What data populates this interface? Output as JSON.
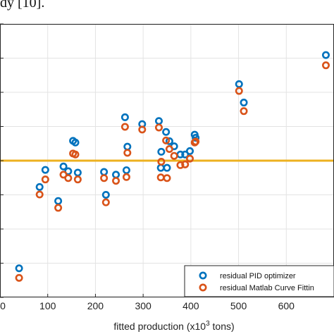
{
  "page": {
    "top_text": "dy [10]."
  },
  "chart_data": {
    "type": "scatter",
    "title": "",
    "xlabel_main": "fitted production (x10",
    "xlabel_sup": "3",
    "xlabel_end": " tons)",
    "ylabel": "",
    "xlim": [
      0,
      700
    ],
    "ylim": [
      -4,
      4
    ],
    "x_ticks": [
      0,
      100,
      200,
      300,
      400,
      500,
      600
    ],
    "x_tick_labels": [
      "0",
      "100",
      "200",
      "300",
      "400",
      "500",
      "600"
    ],
    "y_ticks": [
      -4,
      -3,
      -2,
      -1,
      0,
      1,
      2,
      3,
      4
    ],
    "grid": true,
    "legend_position": "bottom-right",
    "reference_line": {
      "y": 0,
      "color": "#EDB120"
    },
    "series": [
      {
        "name": "residual PID optimizer",
        "color": "#0072BD",
        "x": [
          40,
          83,
          95,
          122,
          133,
          143,
          153,
          158,
          163,
          218,
          222,
          243,
          262,
          265,
          267,
          298,
          333,
          337,
          338,
          348,
          350,
          355,
          365,
          378,
          388,
          398,
          408,
          410,
          501,
          511,
          683
        ],
        "y": [
          -3.15,
          -0.77,
          -0.27,
          -1.18,
          -0.17,
          -0.31,
          0.58,
          0.53,
          -0.35,
          -0.33,
          -1.0,
          -0.41,
          1.27,
          -0.28,
          0.41,
          1.07,
          1.16,
          -0.21,
          0.26,
          0.84,
          -0.21,
          0.57,
          0.42,
          0.18,
          0.18,
          0.28,
          0.76,
          0.67,
          2.24,
          1.7,
          3.09
        ]
      },
      {
        "name": "residual Matlab Curve Fittin",
        "color": "#D95319",
        "x": [
          40,
          83,
          95,
          122,
          133,
          143,
          153,
          158,
          163,
          218,
          222,
          243,
          262,
          265,
          267,
          298,
          333,
          337,
          338,
          348,
          350,
          355,
          365,
          378,
          388,
          398,
          408,
          410,
          501,
          511,
          683
        ],
        "y": [
          -3.43,
          -0.99,
          -0.55,
          -1.38,
          -0.41,
          -0.51,
          0.21,
          0.18,
          -0.55,
          -0.51,
          -1.22,
          -0.59,
          0.99,
          -0.48,
          0.23,
          0.91,
          0.97,
          -0.49,
          -0.03,
          0.59,
          -0.51,
          0.34,
          0.14,
          -0.13,
          -0.11,
          0.06,
          0.53,
          0.56,
          2.04,
          1.45,
          2.79
        ]
      }
    ]
  }
}
